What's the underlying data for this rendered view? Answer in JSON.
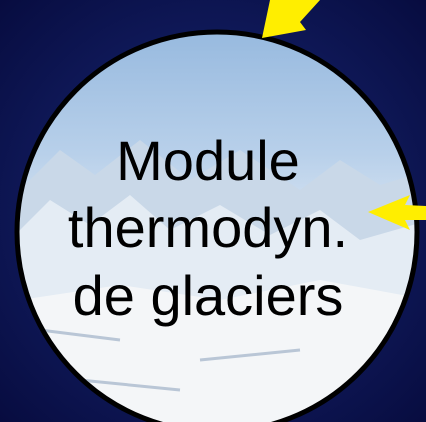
{
  "label": {
    "lines": [
      "Module",
      "thermodyn.",
      "de glaciers"
    ]
  }
}
